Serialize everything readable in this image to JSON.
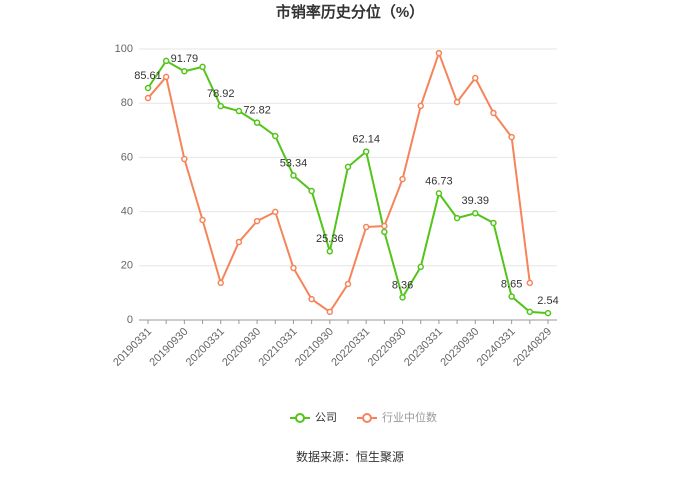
{
  "chart_data": {
    "type": "line",
    "title": "市销率历史分位（%）",
    "categories": [
      "20190331",
      null,
      "20190930",
      null,
      "20200331",
      null,
      "20200930",
      null,
      "20210331",
      null,
      "20210930",
      null,
      "20220331",
      null,
      "20220930",
      null,
      "20230331",
      null,
      "20230930",
      null,
      "20240331",
      null,
      "20240829"
    ],
    "series": [
      {
        "name": "公司",
        "color": "#52c41a",
        "values": [
          85.61,
          95.6,
          91.79,
          93.4,
          78.92,
          77.1,
          72.82,
          67.9,
          53.34,
          47.6,
          25.36,
          56.5,
          62.14,
          32.5,
          8.36,
          19.6,
          46.73,
          37.6,
          39.39,
          35.8,
          8.65,
          3,
          2.54
        ],
        "value_labels": [
          "85.61",
          null,
          "91.79",
          null,
          "78.92",
          null,
          "72.82",
          null,
          "53.34",
          null,
          "25.36",
          null,
          "62.14",
          null,
          "8.36",
          null,
          "46.73",
          null,
          "39.39",
          null,
          "8.65",
          null,
          "2.54"
        ]
      },
      {
        "name": "行业中位数",
        "color": "#f5845a",
        "values": [
          81.9,
          89.7,
          59.4,
          36.9,
          13.7,
          28.8,
          36.5,
          39.9,
          19.2,
          7.7,
          3,
          13.3,
          34.3,
          34.7,
          52,
          79,
          98.5,
          80.4,
          89.3,
          76.4,
          67.5,
          13.7,
          null
        ]
      }
    ],
    "ylim": [
      0,
      100
    ],
    "yticks": [
      0,
      20,
      40,
      60,
      80,
      100
    ],
    "grid": true,
    "source": "数据来源：恒生聚源"
  }
}
